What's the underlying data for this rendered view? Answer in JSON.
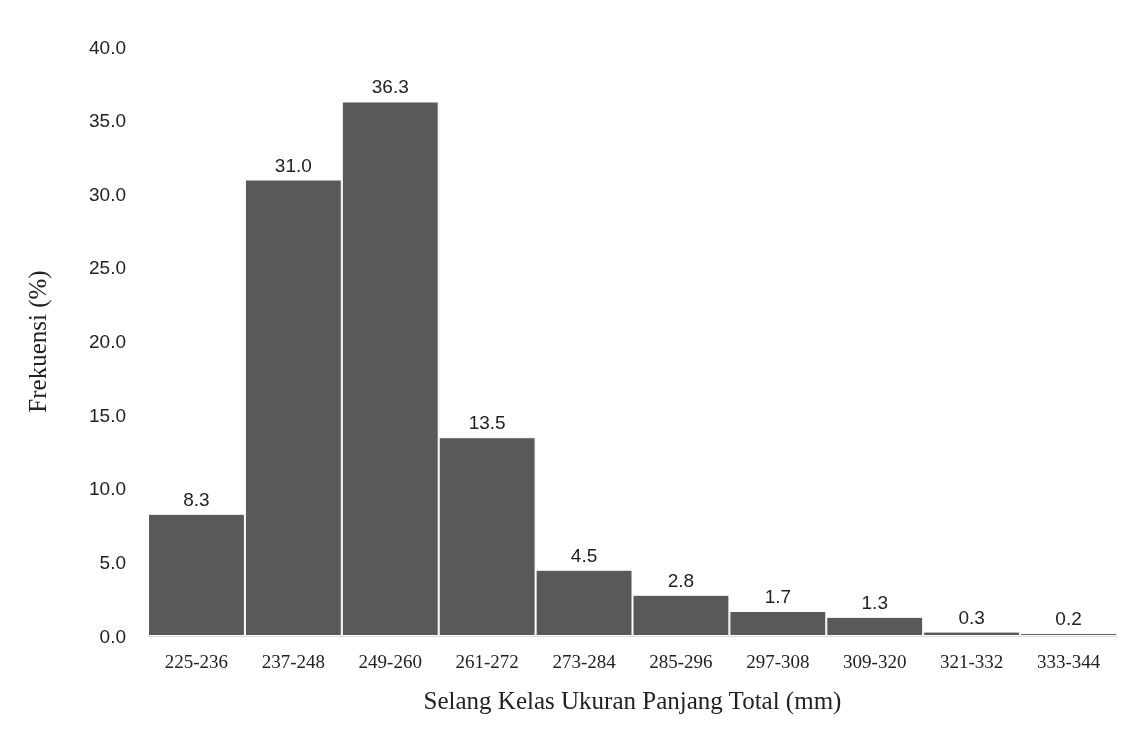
{
  "chart_data": {
    "type": "bar",
    "xlabel": "Selang Kelas Ukuran Panjang Total (mm)",
    "ylabel": "Frekuensi (%)",
    "categories": [
      "225-236",
      "237-248",
      "249-260",
      "261-272",
      "273-284",
      "285-296",
      "297-308",
      "309-320",
      "321-332",
      "333-344"
    ],
    "values": [
      8.3,
      31.0,
      36.3,
      13.5,
      4.5,
      2.8,
      1.7,
      1.3,
      0.3,
      0.2
    ],
    "value_labels": [
      "8.3",
      "31.0",
      "36.3",
      "13.5",
      "4.5",
      "2.8",
      "1.7",
      "1.3",
      "0.3",
      "0.2"
    ],
    "color": "#595959",
    "ylim": [
      0,
      40
    ],
    "yticks": [
      {
        "value": 0,
        "label": "0.0"
      },
      {
        "value": 5,
        "label": "5.0"
      },
      {
        "value": 10,
        "label": "10.0"
      },
      {
        "value": 15,
        "label": "15.0"
      },
      {
        "value": 20,
        "label": "20.0"
      },
      {
        "value": 25,
        "label": "25.0"
      },
      {
        "value": 30,
        "label": "30.0"
      },
      {
        "value": 35,
        "label": "35.0"
      },
      {
        "value": 40,
        "label": "40.0"
      }
    ],
    "grid": false
  }
}
